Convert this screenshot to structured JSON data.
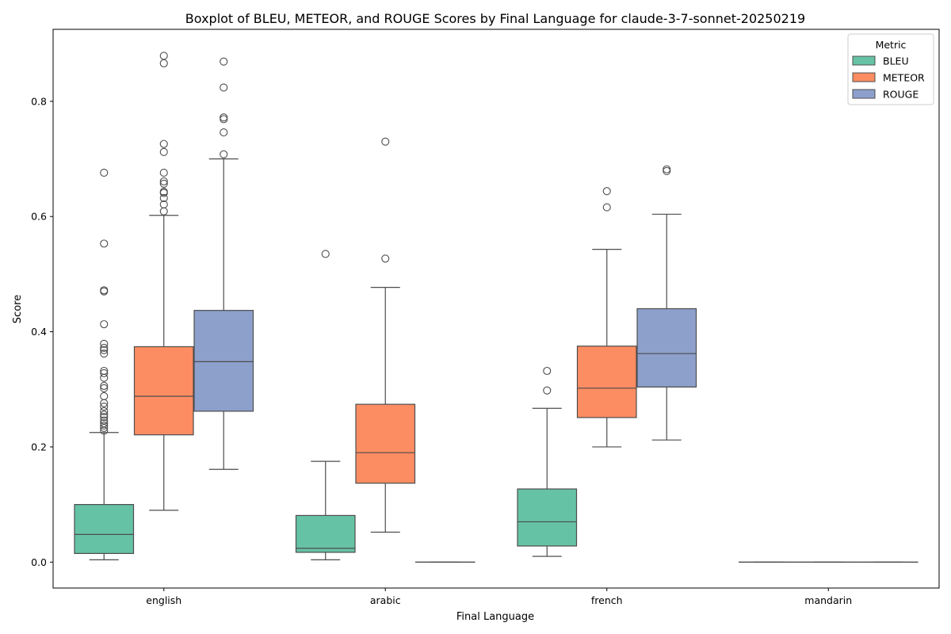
{
  "chart_data": {
    "type": "boxplot",
    "title": "Boxplot of BLEU, METEOR, and ROUGE Scores by Final Language for claude-3-7-sonnet-20250219",
    "xlabel": "Final Language",
    "ylabel": "Score",
    "ylim": [
      -0.045,
      0.925
    ],
    "yticks": [
      "0.0",
      "0.2",
      "0.4",
      "0.6",
      "0.8"
    ],
    "categories": [
      "english",
      "arabic",
      "french",
      "mandarin"
    ],
    "grid": false,
    "legend": {
      "title": "Metric",
      "placement": "top-right"
    },
    "series": [
      {
        "name": "BLEU",
        "color": "#66c2a5",
        "boxes": [
          {
            "category": "english",
            "whislo": 0.004,
            "q1": 0.015,
            "med": 0.048,
            "q3": 0.1,
            "whishi": 0.225,
            "fliers": [
              0.676,
              0.553,
              0.472,
              0.47,
              0.413,
              0.379,
              0.372,
              0.368,
              0.362,
              0.332,
              0.328,
              0.32,
              0.306,
              0.302,
              0.288,
              0.276,
              0.27,
              0.262,
              0.256,
              0.252,
              0.246,
              0.241,
              0.237,
              0.233,
              0.228
            ]
          },
          {
            "category": "arabic",
            "whislo": 0.004,
            "q1": 0.017,
            "med": 0.024,
            "q3": 0.081,
            "whishi": 0.175,
            "fliers": [
              0.535
            ]
          },
          {
            "category": "french",
            "whislo": 0.01,
            "q1": 0.028,
            "med": 0.07,
            "q3": 0.127,
            "whishi": 0.267,
            "fliers": [
              0.332,
              0.298
            ]
          },
          {
            "category": "mandarin",
            "whislo": 0.0,
            "q1": 0.0,
            "med": 0.0,
            "q3": 0.0,
            "whishi": 0.0,
            "fliers": []
          }
        ]
      },
      {
        "name": "METEOR",
        "color": "#fc8d62",
        "boxes": [
          {
            "category": "english",
            "whislo": 0.09,
            "q1": 0.221,
            "med": 0.288,
            "q3": 0.374,
            "whishi": 0.602,
            "fliers": [
              0.879,
              0.866,
              0.726,
              0.712,
              0.676,
              0.661,
              0.657,
              0.643,
              0.641,
              0.632,
              0.621,
              0.609
            ]
          },
          {
            "category": "arabic",
            "whislo": 0.052,
            "q1": 0.137,
            "med": 0.19,
            "q3": 0.274,
            "whishi": 0.477,
            "fliers": [
              0.73,
              0.527
            ]
          },
          {
            "category": "french",
            "whislo": 0.2,
            "q1": 0.251,
            "med": 0.302,
            "q3": 0.375,
            "whishi": 0.543,
            "fliers": [
              0.644,
              0.616
            ]
          },
          {
            "category": "mandarin",
            "whislo": 0.0,
            "q1": 0.0,
            "med": 0.0,
            "q3": 0.0,
            "whishi": 0.0,
            "fliers": []
          }
        ]
      },
      {
        "name": "ROUGE",
        "color": "#8da0cb",
        "boxes": [
          {
            "category": "english",
            "whislo": 0.161,
            "q1": 0.262,
            "med": 0.348,
            "q3": 0.437,
            "whishi": 0.7,
            "fliers": [
              0.869,
              0.824,
              0.772,
              0.769,
              0.746,
              0.708
            ]
          },
          {
            "category": "arabic",
            "whislo": 0.0,
            "q1": 0.0,
            "med": 0.0,
            "q3": 0.0,
            "whishi": 0.0,
            "fliers": []
          },
          {
            "category": "french",
            "whislo": 0.212,
            "q1": 0.304,
            "med": 0.362,
            "q3": 0.44,
            "whishi": 0.604,
            "fliers": [
              0.682,
              0.679
            ]
          },
          {
            "category": "mandarin",
            "whislo": 0.0,
            "q1": 0.0,
            "med": 0.0,
            "q3": 0.0,
            "whishi": 0.0,
            "fliers": []
          }
        ]
      }
    ]
  }
}
